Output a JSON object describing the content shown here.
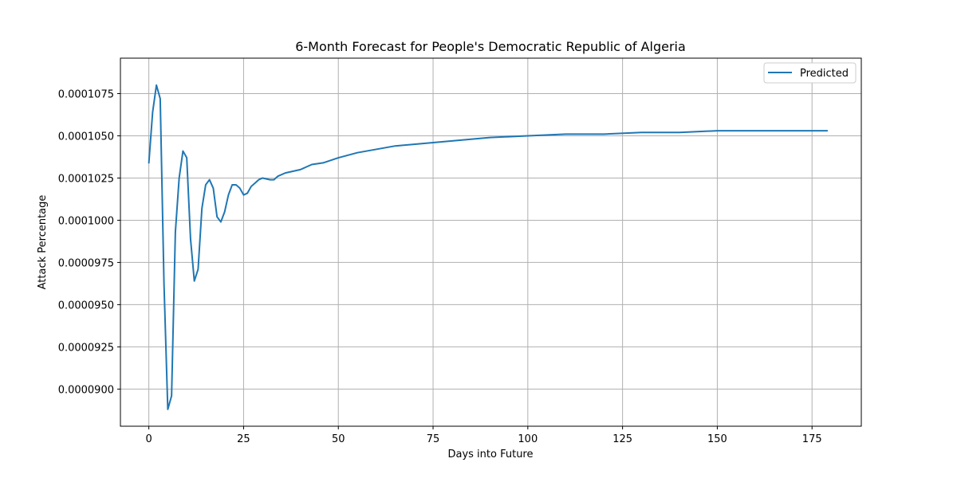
{
  "chart_data": {
    "type": "line",
    "title": "6-Month Forecast for People's Democratic Republic of Algeria",
    "xlabel": "Days into Future",
    "ylabel": "Attack Percentage",
    "xlim": [
      -7.5,
      188
    ],
    "ylim": [
      8.78e-05,
      0.0001096
    ],
    "grid": true,
    "legend_position": "top-right",
    "x_ticks": [
      0,
      25,
      50,
      75,
      100,
      125,
      150,
      175
    ],
    "x_tick_labels": [
      "0",
      "25",
      "50",
      "75",
      "100",
      "125",
      "150",
      "175"
    ],
    "y_ticks": [
      9e-05,
      9.25e-05,
      9.5e-05,
      9.75e-05,
      0.0001,
      0.0001025,
      0.000105,
      0.0001075
    ],
    "y_tick_labels": [
      "0.0000900",
      "0.0000925",
      "0.0000950",
      "0.0000975",
      "0.0001000",
      "0.0001025",
      "0.0001050",
      "0.0001075"
    ],
    "series": [
      {
        "name": "Predicted",
        "color": "#1f77b4",
        "points": [
          [
            0,
            0.0001034
          ],
          [
            1,
            0.0001064
          ],
          [
            2,
            0.000108
          ],
          [
            3,
            0.0001072
          ],
          [
            4,
            9.62e-05
          ],
          [
            5,
            8.88e-05
          ],
          [
            6,
            8.96e-05
          ],
          [
            7,
            9.93e-05
          ],
          [
            8,
            0.0001025
          ],
          [
            9,
            0.0001041
          ],
          [
            10,
            0.0001037
          ],
          [
            11,
            9.89e-05
          ],
          [
            12,
            9.64e-05
          ],
          [
            13,
            9.71e-05
          ],
          [
            14,
            0.0001007
          ],
          [
            15,
            0.0001021
          ],
          [
            16,
            0.0001024
          ],
          [
            17,
            0.0001019
          ],
          [
            18,
            0.0001002
          ],
          [
            19,
            9.99e-05
          ],
          [
            20,
            0.0001005
          ],
          [
            21,
            0.0001015
          ],
          [
            22,
            0.0001021
          ],
          [
            23,
            0.0001021
          ],
          [
            24,
            0.0001019
          ],
          [
            25,
            0.0001015
          ],
          [
            26,
            0.0001016
          ],
          [
            27,
            0.000102
          ],
          [
            28,
            0.0001022
          ],
          [
            29,
            0.0001024
          ],
          [
            30,
            0.0001025
          ],
          [
            32,
            0.0001024
          ],
          [
            33,
            0.0001024
          ],
          [
            34,
            0.0001026
          ],
          [
            36,
            0.0001028
          ],
          [
            38,
            0.0001029
          ],
          [
            40,
            0.000103
          ],
          [
            43,
            0.0001033
          ],
          [
            46,
            0.0001034
          ],
          [
            50,
            0.0001037
          ],
          [
            55,
            0.000104
          ],
          [
            60,
            0.0001042
          ],
          [
            65,
            0.0001044
          ],
          [
            70,
            0.0001045
          ],
          [
            75,
            0.0001046
          ],
          [
            80,
            0.0001047
          ],
          [
            90,
            0.0001049
          ],
          [
            100,
            0.000105
          ],
          [
            110,
            0.0001051
          ],
          [
            120,
            0.0001051
          ],
          [
            130,
            0.0001052
          ],
          [
            140,
            0.0001052
          ],
          [
            150,
            0.0001053
          ],
          [
            160,
            0.0001053
          ],
          [
            170,
            0.0001053
          ],
          [
            179,
            0.0001053
          ]
        ]
      }
    ]
  }
}
